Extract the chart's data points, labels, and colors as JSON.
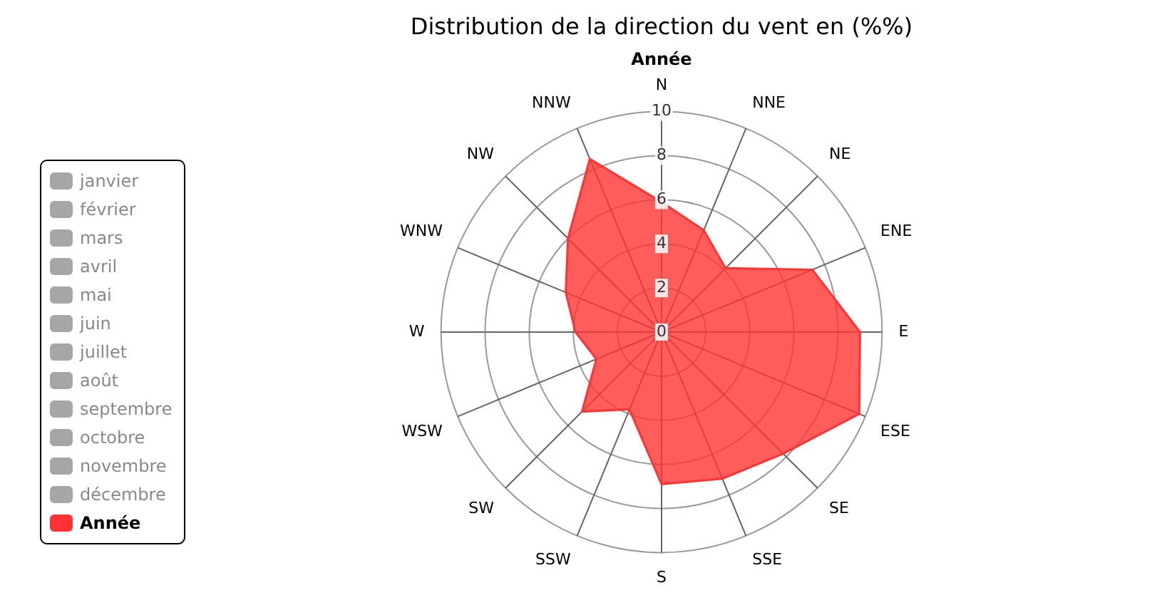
{
  "chart_data": {
    "type": "radar",
    "title": "Distribution de la direction du vent en (%%)",
    "subtitle": "Année",
    "categories": [
      "N",
      "NNE",
      "NE",
      "ENE",
      "E",
      "ESE",
      "SE",
      "SSE",
      "S",
      "SSW",
      "SW",
      "WSW",
      "W",
      "WNW",
      "NW",
      "NNW"
    ],
    "series": [
      {
        "name": "Année",
        "color": "#ff3333",
        "values": [
          5.9,
          5.0,
          4.1,
          7.4,
          9.0,
          9.7,
          7.8,
          7.2,
          6.9,
          3.8,
          5.1,
          3.2,
          3.9,
          4.7,
          6.0,
          8.5
        ]
      }
    ],
    "annotations": [
      "janvier",
      "février",
      "mars",
      "avril",
      "mai",
      "juin",
      "juillet",
      "août",
      "septembre",
      "octobre",
      "novembre",
      "décembre"
    ],
    "ylim": [
      0,
      10
    ],
    "yticks": [
      0,
      2,
      4,
      6,
      8,
      10
    ],
    "grid": true,
    "legend": "left",
    "marker": "none"
  }
}
